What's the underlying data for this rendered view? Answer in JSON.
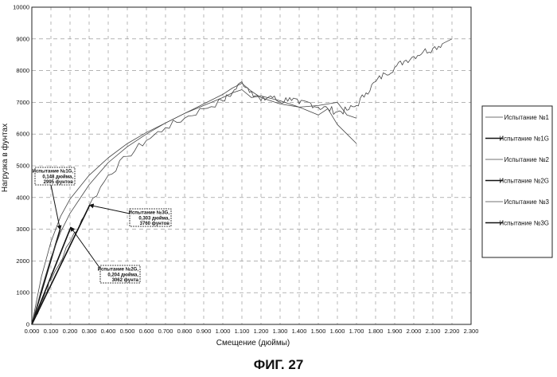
{
  "chart_data": {
    "type": "line",
    "title": "",
    "xlabel": "Смещение (дюймы)",
    "ylabel": "Нагрузка в фунтах",
    "xlim": [
      0,
      2.3
    ],
    "ylim": [
      0,
      10000
    ],
    "grid": true,
    "x_ticks": [
      "0.000",
      "0.100",
      "0.200",
      "0.300",
      "0.400",
      "0.500",
      "0.600",
      "0.700",
      "0.800",
      "0.900",
      "1.000",
      "1.100",
      "1.200",
      "1.300",
      "1.400",
      "1.500",
      "1.600",
      "1.700",
      "1.800",
      "1.900",
      "2.000",
      "2.100",
      "2.200",
      "2.300"
    ],
    "y_ticks": [
      "0",
      "1000",
      "2000",
      "3000",
      "4000",
      "5000",
      "6000",
      "7000",
      "8000",
      "9000",
      "10000"
    ],
    "legend_position": "right",
    "series": [
      {
        "name": "Испытание №1",
        "color": "#444444",
        "width": 0.8,
        "noise": 0,
        "x": [
          0,
          0.05,
          0.1,
          0.15,
          0.2,
          0.3,
          0.4,
          0.5,
          0.6,
          0.7,
          0.8,
          0.9,
          1.0,
          1.05,
          1.1,
          1.15,
          1.2,
          1.3,
          1.4,
          1.5,
          1.55,
          1.6,
          1.65,
          1.7
        ],
        "y": [
          0,
          1500,
          2600,
          3400,
          3950,
          4700,
          5250,
          5700,
          6050,
          6350,
          6650,
          6900,
          7150,
          7300,
          7400,
          7150,
          7200,
          7050,
          6850,
          6600,
          6800,
          6300,
          6000,
          5700
        ]
      },
      {
        "name": "Испытание №1G",
        "color": "#111111",
        "width": 1.6,
        "noise": 0,
        "x": [
          0,
          0.148
        ],
        "y": [
          0,
          2995
        ]
      },
      {
        "name": "Испытание №2",
        "color": "#444444",
        "width": 0.8,
        "noise": 0,
        "x": [
          0,
          0.05,
          0.1,
          0.15,
          0.2,
          0.3,
          0.4,
          0.5,
          0.6,
          0.7,
          0.8,
          0.9,
          1.0,
          1.05,
          1.1,
          1.15,
          1.2,
          1.3,
          1.4,
          1.5,
          1.6,
          1.65,
          1.7
        ],
        "y": [
          0,
          1100,
          2100,
          2900,
          3500,
          4400,
          5100,
          5600,
          6000,
          6350,
          6650,
          6950,
          7250,
          7450,
          7600,
          7350,
          7150,
          6950,
          6850,
          6900,
          7000,
          6600,
          6500
        ]
      },
      {
        "name": "Испытание №2G",
        "color": "#111111",
        "width": 1.6,
        "noise": 0,
        "x": [
          0,
          0.204
        ],
        "y": [
          0,
          3062
        ]
      },
      {
        "name": "Испытание №3",
        "color": "#444444",
        "width": 0.8,
        "noise": 120,
        "x": [
          0,
          0.05,
          0.1,
          0.2,
          0.3,
          0.4,
          0.5,
          0.6,
          0.7,
          0.8,
          0.9,
          1.0,
          1.05,
          1.1,
          1.15,
          1.2,
          1.25,
          1.3,
          1.35,
          1.4,
          1.45,
          1.5,
          1.55,
          1.6,
          1.65,
          1.7,
          1.75,
          1.8,
          1.85,
          1.9,
          1.95,
          2.0,
          2.05,
          2.1,
          2.15,
          2.2
        ],
        "y": [
          0,
          700,
          1400,
          2600,
          3750,
          4700,
          5300,
          5800,
          6200,
          6500,
          6800,
          7050,
          7300,
          7650,
          7350,
          7050,
          7200,
          7000,
          7150,
          6950,
          7000,
          6850,
          6800,
          6700,
          6750,
          6900,
          7300,
          7650,
          7900,
          8100,
          8300,
          8450,
          8600,
          8700,
          8850,
          9000
        ]
      },
      {
        "name": "Испытание №3G",
        "color": "#111111",
        "width": 1.6,
        "noise": 0,
        "x": [
          0,
          0.303
        ],
        "y": [
          0,
          3760
        ]
      }
    ],
    "annotations": [
      {
        "lines": [
          "Испытание №1G,",
          "0,148 дюйма,",
          "2995 фунтов"
        ],
        "x": 0.148,
        "y": 2995
      },
      {
        "lines": [
          "Испытание №3G,",
          "0,303 дюйма,",
          "3760 фунтов"
        ],
        "x": 0.303,
        "y": 3760
      },
      {
        "lines": [
          "Испытание №2G,",
          "0,204 дюйма,",
          "3062 фунта"
        ],
        "x": 0.204,
        "y": 3062
      }
    ]
  },
  "caption": "ФИГ. 27"
}
